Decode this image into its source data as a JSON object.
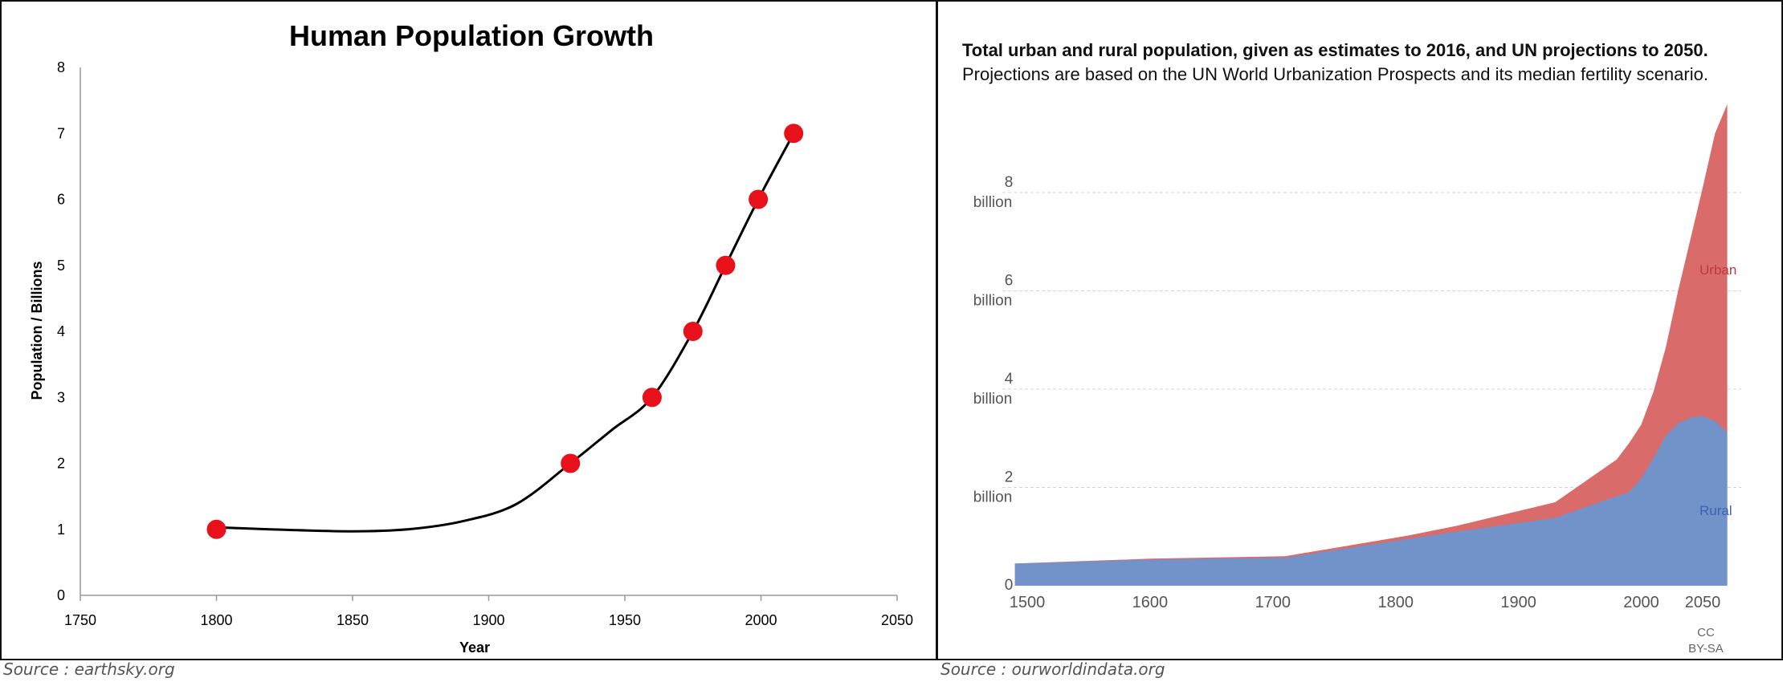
{
  "chart_data": [
    {
      "type": "scatter",
      "title": "Human Population Growth",
      "xlabel": "Year",
      "ylabel": "Population / Billions",
      "xlim": [
        1750,
        2050
      ],
      "ylim": [
        0,
        8
      ],
      "x_ticks": [
        1750,
        1800,
        1850,
        1900,
        1950,
        2000,
        2050
      ],
      "y_ticks": [
        0,
        1,
        2,
        3,
        4,
        5,
        6,
        7,
        8
      ],
      "points": [
        {
          "x": 1800,
          "y": 1
        },
        {
          "x": 1930,
          "y": 2
        },
        {
          "x": 1960,
          "y": 3
        },
        {
          "x": 1975,
          "y": 4
        },
        {
          "x": 1987,
          "y": 5
        },
        {
          "x": 1999,
          "y": 6
        },
        {
          "x": 2012,
          "y": 7
        }
      ],
      "trend_line": [
        {
          "x": 1800,
          "y": 1.03
        },
        {
          "x": 1820,
          "y": 1.0
        },
        {
          "x": 1850,
          "y": 0.97
        },
        {
          "x": 1870,
          "y": 1.0
        },
        {
          "x": 1890,
          "y": 1.12
        },
        {
          "x": 1910,
          "y": 1.38
        },
        {
          "x": 1930,
          "y": 2.0
        },
        {
          "x": 1945,
          "y": 2.5
        },
        {
          "x": 1960,
          "y": 3.0
        },
        {
          "x": 1975,
          "y": 4.0
        },
        {
          "x": 1987,
          "y": 5.0
        },
        {
          "x": 1999,
          "y": 6.0
        },
        {
          "x": 2012,
          "y": 7.0
        }
      ],
      "colors": {
        "point": "#e8111b",
        "line": "#000000",
        "axis": "#999999"
      }
    },
    {
      "type": "area",
      "title": "Total urban and rural population, given as estimates to 2016, and UN projections to 2050.",
      "subtitle": "Projections are based on the UN World Urbanization Prospects and its median fertility scenario.",
      "xlim": [
        1500,
        2050
      ],
      "ylim": [
        0,
        9.8
      ],
      "x_ticks": [
        1500,
        1600,
        1700,
        1800,
        1900,
        2000,
        2050
      ],
      "y_ticks": [
        {
          "value": 0,
          "label": "0",
          "unit": ""
        },
        {
          "value": 2,
          "label": "2",
          "unit": "billion"
        },
        {
          "value": 4,
          "label": "4",
          "unit": "billion"
        },
        {
          "value": 6,
          "label": "6",
          "unit": "billion"
        },
        {
          "value": 8,
          "label": "8",
          "unit": "billion"
        }
      ],
      "x": [
        1490,
        1600,
        1710,
        1810,
        1850,
        1930,
        1980,
        1990,
        2000,
        2010,
        2020,
        2030,
        2040,
        2050,
        2060,
        2070
      ],
      "series": [
        {
          "name": "Rural",
          "color": "#7193c9",
          "values": [
            0.45,
            0.53,
            0.57,
            0.95,
            1.1,
            1.38,
            1.82,
            1.9,
            2.18,
            2.6,
            3.05,
            3.3,
            3.42,
            3.45,
            3.35,
            3.12
          ]
        },
        {
          "name": "Urban",
          "color": "#d96b6b",
          "values": [
            0.0,
            0.02,
            0.03,
            0.07,
            0.12,
            0.32,
            0.75,
            1.0,
            1.1,
            1.35,
            1.8,
            2.7,
            3.63,
            4.65,
            5.85,
            6.68
          ]
        }
      ],
      "series_labels": {
        "urban": "Urban",
        "rural": "Rural"
      },
      "license": [
        "CC",
        "BY-SA"
      ]
    }
  ],
  "sources": {
    "left": "Source : earthsky.org",
    "right": "Source : ourworldindata.org"
  }
}
